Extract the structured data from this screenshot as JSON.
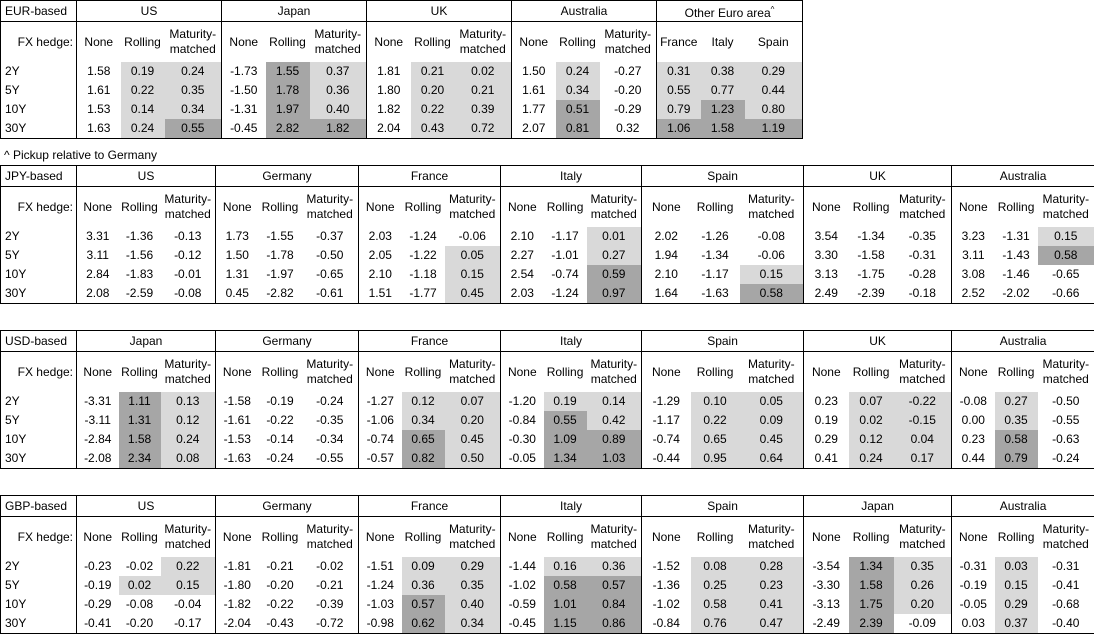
{
  "tables": [
    {
      "base": "EUR-based",
      "fx_hedge": "FX hedge:",
      "groups": [
        {
          "name": "US",
          "columns": [
            "None",
            "Rolling",
            "Maturity-\nmatched"
          ]
        },
        {
          "name": "Japan",
          "columns": [
            "None",
            "Rolling",
            "Maturity-\nmatched"
          ]
        },
        {
          "name": "UK",
          "columns": [
            "None",
            "Rolling",
            "Maturity-\nmatched"
          ]
        },
        {
          "name": "Australia",
          "columns": [
            "None",
            "Rolling",
            "Maturity-\nmatched"
          ]
        },
        {
          "name": "Other Euro area",
          "note": "^",
          "columns": [
            "France",
            "Italy",
            "Spain"
          ]
        }
      ],
      "rows": [
        {
          "label": "2Y",
          "values": [
            "1.58",
            "0.19",
            "0.24",
            "-1.73",
            "1.55",
            "0.37",
            "1.81",
            "0.21",
            "0.02",
            "1.50",
            "0.24",
            "-0.27",
            "0.31",
            "0.38",
            "0.29"
          ],
          "shade": "011021011010111"
        },
        {
          "label": "5Y",
          "values": [
            "1.61",
            "0.22",
            "0.35",
            "-1.50",
            "1.78",
            "0.36",
            "1.80",
            "0.20",
            "0.21",
            "1.61",
            "0.34",
            "-0.20",
            "0.55",
            "0.77",
            "0.44"
          ],
          "shade": "011021011010111"
        },
        {
          "label": "10Y",
          "values": [
            "1.53",
            "0.14",
            "0.34",
            "-1.31",
            "1.97",
            "0.40",
            "1.82",
            "0.22",
            "0.39",
            "1.77",
            "0.51",
            "-0.29",
            "0.79",
            "1.23",
            "0.80"
          ],
          "shade": "011021011020121"
        },
        {
          "label": "30Y",
          "values": [
            "1.63",
            "0.24",
            "0.55",
            "-0.45",
            "2.82",
            "1.82",
            "2.04",
            "0.43",
            "0.72",
            "2.07",
            "0.81",
            "0.32",
            "1.06",
            "1.58",
            "1.19"
          ],
          "shade": "012022011020222"
        }
      ]
    },
    {
      "base": "JPY-based",
      "fx_hedge": "FX hedge:",
      "groups": [
        {
          "name": "US",
          "columns": [
            "None",
            "Rolling",
            "Maturity-\nmatched"
          ]
        },
        {
          "name": "Germany",
          "columns": [
            "None",
            "Rolling",
            "Maturity-\nmatched"
          ]
        },
        {
          "name": "France",
          "columns": [
            "None",
            "Rolling",
            "Maturity-\nmatched"
          ]
        },
        {
          "name": "Italy",
          "columns": [
            "None",
            "Rolling",
            "Maturity-\nmatched"
          ]
        },
        {
          "name": "Spain",
          "columns": [
            "None",
            "Rolling",
            "Maturity-\nmatched"
          ]
        },
        {
          "name": "UK",
          "columns": [
            "None",
            "Rolling",
            "Maturity-\nmatched"
          ]
        },
        {
          "name": "Australia",
          "columns": [
            "None",
            "Rolling",
            "Maturity-\nmatched"
          ]
        }
      ],
      "rows": [
        {
          "label": "2Y",
          "values": [
            "3.31",
            "-1.36",
            "-0.13",
            "1.73",
            "-1.55",
            "-0.37",
            "2.03",
            "-1.24",
            "-0.06",
            "2.10",
            "-1.17",
            "0.01",
            "2.02",
            "-1.26",
            "-0.08",
            "3.54",
            "-1.34",
            "-0.35",
            "3.23",
            "-1.31",
            "0.15"
          ],
          "shade": "000000000001000000001"
        },
        {
          "label": "5Y",
          "values": [
            "3.11",
            "-1.56",
            "-0.12",
            "1.50",
            "-1.78",
            "-0.50",
            "2.05",
            "-1.22",
            "0.05",
            "2.27",
            "-1.01",
            "0.27",
            "1.94",
            "-1.34",
            "-0.06",
            "3.30",
            "-1.58",
            "-0.31",
            "3.11",
            "-1.43",
            "0.58"
          ],
          "shade": "000000001001000000002"
        },
        {
          "label": "10Y",
          "values": [
            "2.84",
            "-1.83",
            "-0.01",
            "1.31",
            "-1.97",
            "-0.65",
            "2.10",
            "-1.18",
            "0.15",
            "2.54",
            "-0.74",
            "0.59",
            "2.10",
            "-1.17",
            "0.15",
            "3.13",
            "-1.75",
            "-0.28",
            "3.08",
            "-1.46",
            "-0.65"
          ],
          "shade": "000000001002001000000"
        },
        {
          "label": "30Y",
          "values": [
            "2.08",
            "-2.59",
            "-0.08",
            "0.45",
            "-2.82",
            "-0.61",
            "1.51",
            "-1.77",
            "0.45",
            "2.03",
            "-1.24",
            "0.97",
            "1.64",
            "-1.63",
            "0.58",
            "2.49",
            "-2.39",
            "-0.18",
            "2.52",
            "-2.02",
            "-0.66"
          ],
          "shade": "000000001002002000000"
        }
      ]
    },
    {
      "base": "USD-based",
      "fx_hedge": "FX hedge:",
      "groups": [
        {
          "name": "Japan",
          "columns": [
            "None",
            "Rolling",
            "Maturity-\nmatched"
          ]
        },
        {
          "name": "Germany",
          "columns": [
            "None",
            "Rolling",
            "Maturity-\nmatched"
          ]
        },
        {
          "name": "France",
          "columns": [
            "None",
            "Rolling",
            "Maturity-\nmatched"
          ]
        },
        {
          "name": "Italy",
          "columns": [
            "None",
            "Rolling",
            "Maturity-\nmatched"
          ]
        },
        {
          "name": "Spain",
          "columns": [
            "None",
            "Rolling",
            "Maturity-\nmatched"
          ]
        },
        {
          "name": "UK",
          "columns": [
            "None",
            "Rolling",
            "Maturity-\nmatched"
          ]
        },
        {
          "name": "Australia",
          "columns": [
            "None",
            "Rolling",
            "Maturity-\nmatched"
          ]
        }
      ],
      "rows": [
        {
          "label": "2Y",
          "values": [
            "-3.31",
            "1.11",
            "0.13",
            "-1.58",
            "-0.19",
            "-0.24",
            "-1.27",
            "0.12",
            "0.07",
            "-1.20",
            "0.19",
            "0.14",
            "-1.29",
            "0.10",
            "0.05",
            "0.23",
            "0.07",
            "-0.22",
            "-0.08",
            "0.27",
            "-0.50"
          ],
          "shade": "021000011011011011010"
        },
        {
          "label": "5Y",
          "values": [
            "-3.11",
            "1.31",
            "0.12",
            "-1.61",
            "-0.22",
            "-0.35",
            "-1.06",
            "0.34",
            "0.20",
            "-0.84",
            "0.55",
            "0.42",
            "-1.17",
            "0.22",
            "0.09",
            "0.19",
            "0.02",
            "-0.15",
            "0.00",
            "0.35",
            "-0.55"
          ],
          "shade": "021000011021011011010"
        },
        {
          "label": "10Y",
          "values": [
            "-2.84",
            "1.58",
            "0.24",
            "-1.53",
            "-0.14",
            "-0.34",
            "-0.74",
            "0.65",
            "0.45",
            "-0.30",
            "1.09",
            "0.89",
            "-0.74",
            "0.65",
            "0.45",
            "0.29",
            "0.12",
            "0.04",
            "0.23",
            "0.58",
            "-0.63"
          ],
          "shade": "021000021022011011020"
        },
        {
          "label": "30Y",
          "values": [
            "-2.08",
            "2.34",
            "0.08",
            "-1.63",
            "-0.24",
            "-0.55",
            "-0.57",
            "0.82",
            "0.50",
            "-0.05",
            "1.34",
            "1.03",
            "-0.44",
            "0.95",
            "0.64",
            "0.41",
            "0.24",
            "0.17",
            "0.44",
            "0.79",
            "-0.24"
          ],
          "shade": "021000021022011011020"
        }
      ]
    },
    {
      "base": "GBP-based",
      "fx_hedge": "FX hedge:",
      "groups": [
        {
          "name": "US",
          "columns": [
            "None",
            "Rolling",
            "Maturity-\nmatched"
          ]
        },
        {
          "name": "Germany",
          "columns": [
            "None",
            "Rolling",
            "Maturity-\nmatched"
          ]
        },
        {
          "name": "France",
          "columns": [
            "None",
            "Rolling",
            "Maturity-\nmatched"
          ]
        },
        {
          "name": "Italy",
          "columns": [
            "None",
            "Rolling",
            "Maturity-\nmatched"
          ]
        },
        {
          "name": "Spain",
          "columns": [
            "None",
            "Rolling",
            "Maturity-\nmatched"
          ]
        },
        {
          "name": "Japan",
          "columns": [
            "None",
            "Rolling",
            "Maturity-\nmatched"
          ]
        },
        {
          "name": "Australia",
          "columns": [
            "None",
            "Rolling",
            "Maturity-\nmatched"
          ]
        }
      ],
      "rows": [
        {
          "label": "2Y",
          "values": [
            "-0.23",
            "-0.02",
            "0.22",
            "-1.81",
            "-0.21",
            "-0.02",
            "-1.51",
            "0.09",
            "0.29",
            "-1.44",
            "0.16",
            "0.36",
            "-1.52",
            "0.08",
            "0.28",
            "-3.54",
            "1.34",
            "0.35",
            "-0.31",
            "0.03",
            "-0.31"
          ],
          "shade": "001000011011011021010"
        },
        {
          "label": "5Y",
          "values": [
            "-0.19",
            "0.02",
            "0.15",
            "-1.80",
            "-0.20",
            "-0.21",
            "-1.24",
            "0.36",
            "0.35",
            "-1.02",
            "0.58",
            "0.57",
            "-1.36",
            "0.25",
            "0.23",
            "-3.30",
            "1.58",
            "0.26",
            "-0.19",
            "0.15",
            "-0.41"
          ],
          "shade": "011000011022011021010"
        },
        {
          "label": "10Y",
          "values": [
            "-0.29",
            "-0.08",
            "-0.04",
            "-1.82",
            "-0.22",
            "-0.39",
            "-1.03",
            "0.57",
            "0.40",
            "-0.59",
            "1.01",
            "0.84",
            "-1.02",
            "0.58",
            "0.41",
            "-3.13",
            "1.75",
            "0.20",
            "-0.05",
            "0.29",
            "-0.68"
          ],
          "shade": "000000021022011021010"
        },
        {
          "label": "30Y",
          "values": [
            "-0.41",
            "-0.20",
            "-0.17",
            "-2.04",
            "-0.43",
            "-0.72",
            "-0.98",
            "0.62",
            "0.34",
            "-0.45",
            "1.15",
            "0.86",
            "-0.84",
            "0.76",
            "0.47",
            "-2.49",
            "2.39",
            "-0.09",
            "0.03",
            "0.37",
            "-0.40"
          ],
          "shade": "000000021022011020010"
        }
      ]
    }
  ],
  "footnote": "^ Pickup relative to Germany",
  "shade_colors": {
    "1": "#d9d9d9",
    "2": "#a6a6a6"
  }
}
